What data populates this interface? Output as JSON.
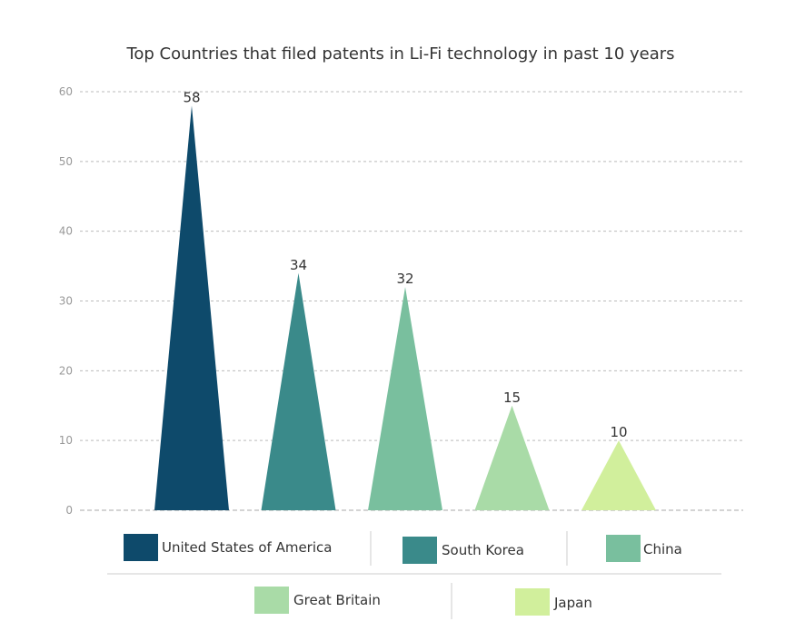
{
  "chart_data": {
    "type": "bar",
    "mark_shape": "triangle",
    "title": "Top Countries that filed patents in Li-Fi technology in past 10 years",
    "xlabel": "",
    "ylabel": "",
    "ylim": [
      0,
      60
    ],
    "yticks": [
      0,
      10,
      20,
      30,
      40,
      50,
      60
    ],
    "grid": true,
    "legend_position": "bottom",
    "categories": [
      "United States of America",
      "South Korea",
      "China",
      "Great Britain",
      "Japan"
    ],
    "values": [
      58,
      34,
      32,
      15,
      10
    ],
    "value_labels": [
      "58",
      "34",
      "32",
      "15",
      "10"
    ],
    "colors": [
      "#0e4a6b",
      "#3a8a8a",
      "#79bf9e",
      "#a9dba7",
      "#d1ef9c"
    ]
  }
}
